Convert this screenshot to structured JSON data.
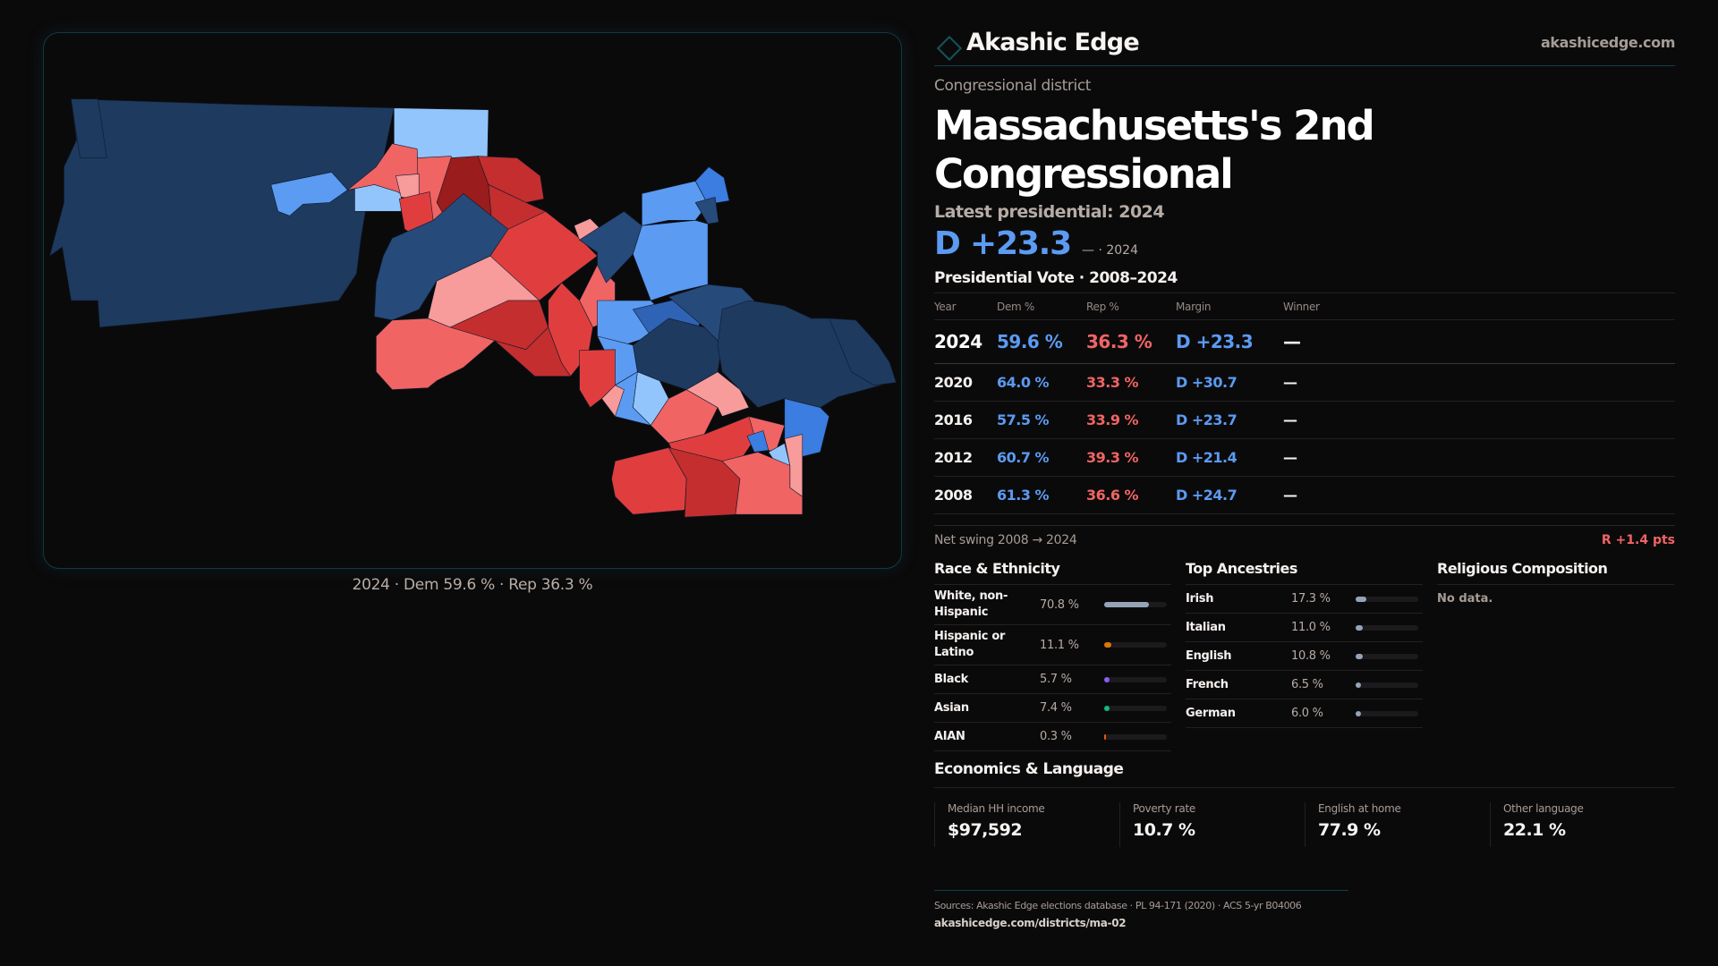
{
  "brand": {
    "name": "Akashic Edge",
    "icon": "diamond-icon",
    "site": "akashicedge.com"
  },
  "header": {
    "kicker": "Congressional district",
    "title": "Massachusetts's 2nd Congressional",
    "latest_label": "Latest presidential: 2024",
    "headline_margin": "D +23.3",
    "headline_sub": "— · 2024"
  },
  "map": {
    "caption": "2024 · Dem 59.6 % · Rep 36.3 %",
    "colors": {
      "dem_strong": "#1e3a5f",
      "dem_mid": "#264a7a",
      "dem_med": "#2f63b5",
      "dem_bright": "#3b7de0",
      "dem_light": "#5b9bf2",
      "dem_pale": "#93c5fd",
      "rep_pale": "#f89b9b",
      "rep_light": "#f06464",
      "rep_med": "#e03e3e",
      "rep_strong": "#c42e2e",
      "rep_dark": "#9b1c1c"
    }
  },
  "presidential": {
    "title": "Presidential Vote · 2008–2024",
    "columns": [
      "Year",
      "Dem %",
      "Rep %",
      "Margin",
      "Winner"
    ],
    "rows": [
      {
        "year": "2024",
        "dem": "59.6 %",
        "rep": "36.3 %",
        "margin": "D +23.3",
        "winner": "—"
      },
      {
        "year": "2020",
        "dem": "64.0 %",
        "rep": "33.3 %",
        "margin": "D +30.7",
        "winner": "—"
      },
      {
        "year": "2016",
        "dem": "57.5 %",
        "rep": "33.9 %",
        "margin": "D +23.7",
        "winner": "—"
      },
      {
        "year": "2012",
        "dem": "60.7 %",
        "rep": "39.3 %",
        "margin": "D +21.4",
        "winner": "—"
      },
      {
        "year": "2008",
        "dem": "61.3 %",
        "rep": "36.6 %",
        "margin": "D +24.7",
        "winner": "—"
      }
    ],
    "swing_label": "Net swing 2008 → 2024",
    "swing_value": "R +1.4 pts"
  },
  "race": {
    "title": "Race & Ethnicity",
    "items": [
      {
        "label": "White, non-Hispanic",
        "value": "70.8 %",
        "pct": 70.8,
        "color": "#94a3b8"
      },
      {
        "label": "Hispanic or Latino",
        "value": "11.1 %",
        "pct": 11.1,
        "color": "#d97706"
      },
      {
        "label": "Black",
        "value": "5.7 %",
        "pct": 5.7,
        "color": "#8b5cf6"
      },
      {
        "label": "Asian",
        "value": "7.4 %",
        "pct": 7.4,
        "color": "#10b981"
      },
      {
        "label": "AIAN",
        "value": "0.3 %",
        "pct": 0.3,
        "color": "#ea580c"
      }
    ]
  },
  "ancestry": {
    "title": "Top Ancestries",
    "items": [
      {
        "label": "Irish",
        "value": "17.3 %",
        "pct": 17.3,
        "color": "#94a3b8"
      },
      {
        "label": "Italian",
        "value": "11.0 %",
        "pct": 11.0,
        "color": "#94a3b8"
      },
      {
        "label": "English",
        "value": "10.8 %",
        "pct": 10.8,
        "color": "#94a3b8"
      },
      {
        "label": "French",
        "value": "6.5 %",
        "pct": 6.5,
        "color": "#94a3b8"
      },
      {
        "label": "German",
        "value": "6.0 %",
        "pct": 6.0,
        "color": "#94a3b8"
      }
    ]
  },
  "religion": {
    "title": "Religious Composition",
    "empty": "No data."
  },
  "economics": {
    "title": "Economics & Language",
    "cells": [
      {
        "label": "Median HH income",
        "value": "$97,592"
      },
      {
        "label": "Poverty rate",
        "value": "10.7 %"
      },
      {
        "label": "English at home",
        "value": "77.9 %"
      },
      {
        "label": "Other language",
        "value": "22.1 %"
      }
    ]
  },
  "footer": {
    "sources": "Sources: Akashic Edge elections database · PL 94-171 (2020) · ACS 5-yr B04006",
    "url": "akashicedge.com/districts/ma-02"
  }
}
